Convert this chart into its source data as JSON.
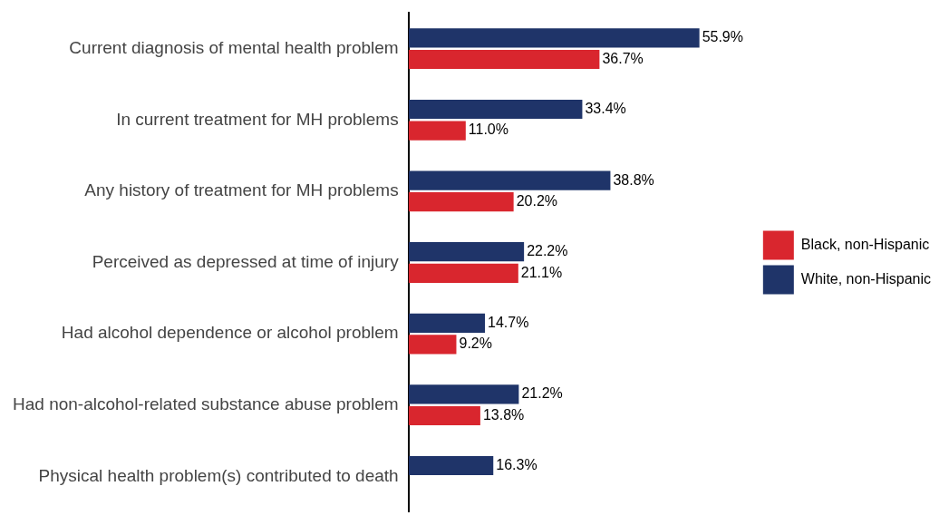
{
  "chart_data": {
    "type": "bar",
    "orientation": "horizontal",
    "legend": "right",
    "categories": [
      "Current diagnosis of mental health problem",
      "In current treatment for MH problems",
      "Any history of treatment for MH problems",
      "Perceived as depressed at time of injury",
      "Had alcohol dependence or alcohol problem",
      "Had non-alcohol-related substance abuse problem",
      "Physical health problem(s) contributed to death"
    ],
    "series": [
      {
        "name": "White, non-Hispanic",
        "color": "#1f3469",
        "values": [
          55.9,
          33.4,
          38.8,
          22.2,
          14.7,
          21.2,
          16.3
        ],
        "value_labels": [
          "55.9%",
          "33.4%",
          "38.8%",
          "22.2%",
          "14.7%",
          "21.2%",
          "16.3%"
        ]
      },
      {
        "name": "Black, non-Hispanic",
        "color": "#d9262e",
        "values": [
          36.7,
          11.0,
          20.2,
          21.1,
          9.2,
          13.8,
          null
        ],
        "value_labels": [
          "36.7%",
          "11.0%",
          "20.2%",
          "21.1%",
          "9.2%",
          "13.8%",
          null
        ]
      }
    ]
  }
}
